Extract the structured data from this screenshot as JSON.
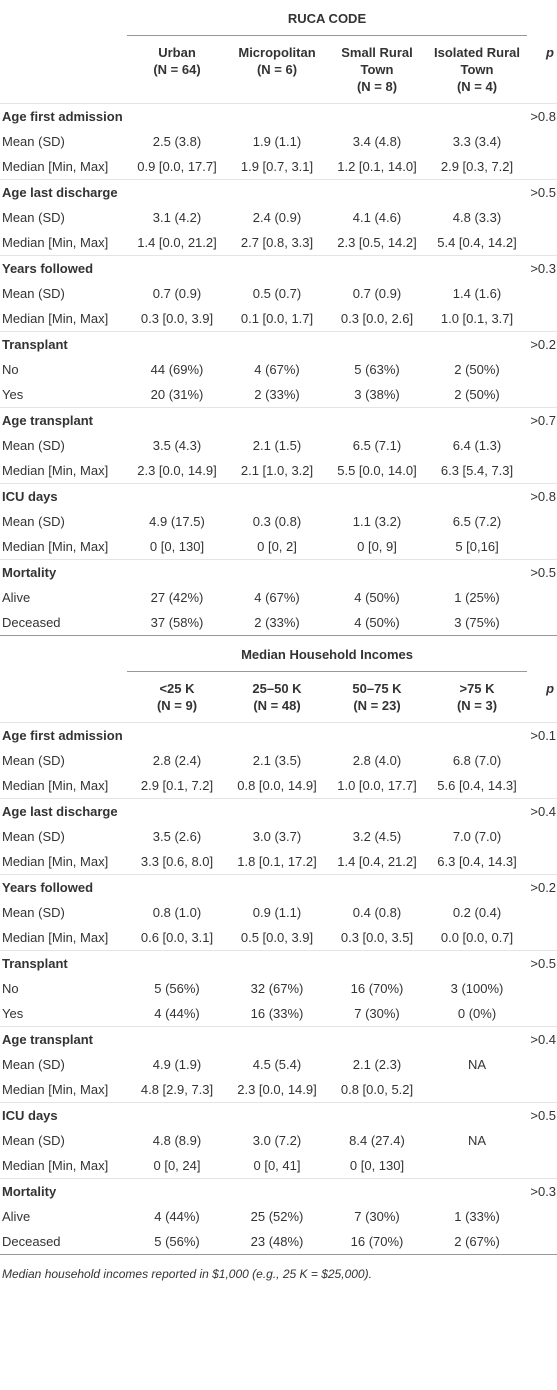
{
  "tables": [
    {
      "group_header": "RUCA CODE",
      "p_header": "p",
      "columns": [
        {
          "name": "Urban",
          "n": "(N = 64)"
        },
        {
          "name": "Micropolitan",
          "n": "(N = 6)"
        },
        {
          "name": "Small Rural Town",
          "n": "(N = 8)"
        },
        {
          "name": "Isolated Rural Town",
          "n": "(N = 4)"
        }
      ],
      "sections": [
        {
          "title": "Age first admission",
          "p": ">0.8",
          "rows": [
            {
              "label": "Mean (SD)",
              "cells": [
                "2.5 (3.8)",
                "1.9 (1.1)",
                "3.4 (4.8)",
                "3.3 (3.4)"
              ]
            },
            {
              "label": "Median [Min, Max]",
              "cells": [
                "0.9 [0.0, 17.7]",
                "1.9 [0.7, 3.1]",
                "1.2 [0.1, 14.0]",
                "2.9 [0.3, 7.2]"
              ]
            }
          ]
        },
        {
          "title": "Age last discharge",
          "p": ">0.5",
          "rows": [
            {
              "label": "Mean (SD)",
              "cells": [
                "3.1 (4.2)",
                "2.4 (0.9)",
                "4.1 (4.6)",
                "4.8 (3.3)"
              ]
            },
            {
              "label": "Median [Min, Max]",
              "cells": [
                "1.4 [0.0, 21.2]",
                "2.7 [0.8, 3.3]",
                "2.3 [0.5, 14.2]",
                "5.4 [0.4, 14.2]"
              ]
            }
          ]
        },
        {
          "title": "Years followed",
          "p": ">0.3",
          "rows": [
            {
              "label": "Mean (SD)",
              "cells": [
                "0.7 (0.9)",
                "0.5 (0.7)",
                "0.7 (0.9)",
                "1.4 (1.6)"
              ]
            },
            {
              "label": "Median [Min, Max]",
              "cells": [
                "0.3 [0.0, 3.9]",
                "0.1 [0.0, 1.7]",
                "0.3 [0.0, 2.6]",
                "1.0 [0.1, 3.7]"
              ]
            }
          ]
        },
        {
          "title": "Transplant",
          "p": ">0.2",
          "rows": [
            {
              "label": "No",
              "cells": [
                "44 (69%)",
                "4 (67%)",
                "5 (63%)",
                "2 (50%)"
              ]
            },
            {
              "label": "Yes",
              "cells": [
                "20 (31%)",
                "2 (33%)",
                "3 (38%)",
                "2 (50%)"
              ]
            }
          ]
        },
        {
          "title": "Age transplant",
          "p": ">0.7",
          "rows": [
            {
              "label": "Mean (SD)",
              "cells": [
                "3.5 (4.3)",
                "2.1 (1.5)",
                "6.5 (7.1)",
                "6.4 (1.3)"
              ]
            },
            {
              "label": "Median [Min, Max]",
              "cells": [
                "2.3 [0.0, 14.9]",
                "2.1 [1.0, 3.2]",
                "5.5 [0.0, 14.0]",
                "6.3 [5.4, 7.3]"
              ]
            }
          ]
        },
        {
          "title": "ICU days",
          "p": ">0.8",
          "rows": [
            {
              "label": "Mean (SD)",
              "cells": [
                "4.9 (17.5)",
                "0.3 (0.8)",
                "1.1 (3.2)",
                "6.5 (7.2)"
              ]
            },
            {
              "label": "Median [Min, Max]",
              "cells": [
                "0 [0, 130]",
                "0 [0, 2]",
                "0 [0, 9]",
                "5 [0,16]"
              ]
            }
          ]
        },
        {
          "title": "Mortality",
          "p": ">0.5",
          "rows": [
            {
              "label": "Alive",
              "cells": [
                "27 (42%)",
                "4 (67%)",
                "4 (50%)",
                "1 (25%)"
              ]
            },
            {
              "label": "Deceased",
              "cells": [
                "37 (58%)",
                "2 (33%)",
                "4 (50%)",
                "3 (75%)"
              ]
            }
          ]
        }
      ]
    },
    {
      "group_header": "Median Household Incomes",
      "p_header": "p",
      "columns": [
        {
          "name": "<25 K",
          "n": "(N = 9)"
        },
        {
          "name": "25–50 K",
          "n": "(N = 48)"
        },
        {
          "name": "50–75 K",
          "n": "(N = 23)"
        },
        {
          "name": ">75 K",
          "n": "(N = 3)"
        }
      ],
      "sections": [
        {
          "title": "Age first admission",
          "p": ">0.1",
          "rows": [
            {
              "label": "Mean (SD)",
              "cells": [
                "2.8 (2.4)",
                "2.1 (3.5)",
                "2.8 (4.0)",
                "6.8 (7.0)"
              ]
            },
            {
              "label": "Median [Min, Max]",
              "cells": [
                "2.9 [0.1, 7.2]",
                "0.8 [0.0, 14.9]",
                "1.0 [0.0, 17.7]",
                "5.6 [0.4, 14.3]"
              ]
            }
          ]
        },
        {
          "title": "Age last discharge",
          "p": ">0.4",
          "rows": [
            {
              "label": "Mean (SD)",
              "cells": [
                "3.5 (2.6)",
                "3.0 (3.7)",
                "3.2 (4.5)",
                "7.0 (7.0)"
              ]
            },
            {
              "label": "Median [Min, Max]",
              "cells": [
                "3.3 [0.6, 8.0]",
                "1.8 [0.1, 17.2]",
                "1.4 [0.4, 21.2]",
                "6.3 [0.4, 14.3]"
              ]
            }
          ]
        },
        {
          "title": "Years followed",
          "p": ">0.2",
          "rows": [
            {
              "label": "Mean (SD)",
              "cells": [
                "0.8 (1.0)",
                "0.9 (1.1)",
                "0.4 (0.8)",
                "0.2 (0.4)"
              ]
            },
            {
              "label": "Median [Min, Max]",
              "cells": [
                "0.6 [0.0, 3.1]",
                "0.5 [0.0, 3.9]",
                "0.3 [0.0, 3.5]",
                "0.0 [0.0, 0.7]"
              ]
            }
          ]
        },
        {
          "title": "Transplant",
          "p": ">0.5",
          "rows": [
            {
              "label": "No",
              "cells": [
                "5 (56%)",
                "32 (67%)",
                "16 (70%)",
                "3 (100%)"
              ]
            },
            {
              "label": "Yes",
              "cells": [
                "4 (44%)",
                "16 (33%)",
                "7 (30%)",
                "0 (0%)"
              ]
            }
          ]
        },
        {
          "title": "Age transplant",
          "p": ">0.4",
          "rows": [
            {
              "label": "Mean (SD)",
              "cells": [
                "4.9 (1.9)",
                "4.5 (5.4)",
                "2.1 (2.3)",
                "NA"
              ]
            },
            {
              "label": "Median [Min, Max]",
              "cells": [
                "4.8 [2.9, 7.3]",
                "2.3 [0.0, 14.9]",
                "0.8 [0.0, 5.2]",
                null
              ]
            }
          ]
        },
        {
          "title": "ICU days",
          "p": ">0.5",
          "rows": [
            {
              "label": "Mean (SD)",
              "cells": [
                "4.8 (8.9)",
                "3.0 (7.2)",
                "8.4 (27.4)",
                "NA"
              ]
            },
            {
              "label": "Median [Min, Max]",
              "cells": [
                "0 [0, 24]",
                "0 [0, 41]",
                "0 [0, 130]",
                null
              ]
            }
          ]
        },
        {
          "title": "Mortality",
          "p": ">0.3",
          "rows": [
            {
              "label": "Alive",
              "cells": [
                "4 (44%)",
                "25 (52%)",
                "7 (30%)",
                "1 (33%)"
              ]
            },
            {
              "label": "Deceased",
              "cells": [
                "5 (56%)",
                "23 (48%)",
                "16 (70%)",
                "2 (67%)"
              ]
            }
          ]
        }
      ]
    }
  ],
  "footnote": "Median household incomes reported in $1,000 (e.g., 25 K = $25,000)."
}
